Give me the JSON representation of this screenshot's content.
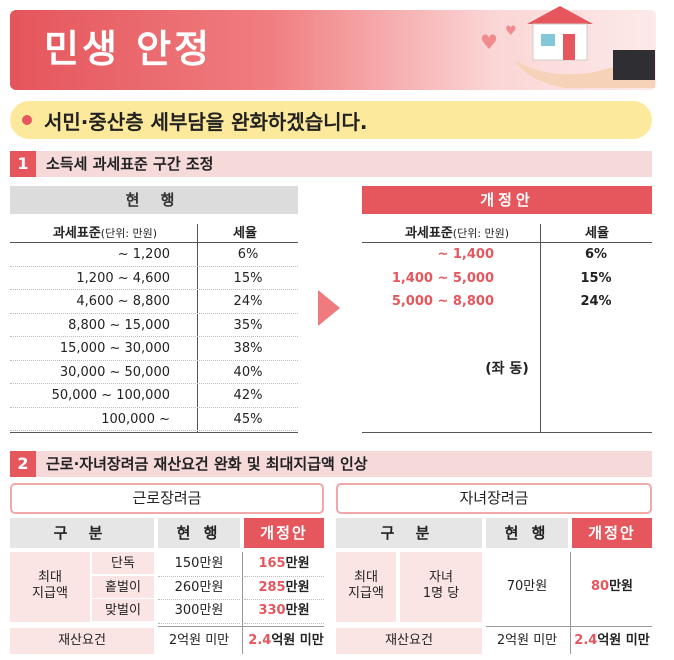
{
  "header": {
    "title": "민생 안정"
  },
  "subtitle": "서민·중산층 세부담을 완화하겠습니다.",
  "section1": {
    "number": "1",
    "title": "소득세 과세표준 구간 조정",
    "current": {
      "label": "현 행",
      "col_base": "과세표준",
      "col_unit": "(단위: 만원)",
      "col_rate": "세율",
      "rows": [
        {
          "base": "~ 1,200",
          "rate": "6%"
        },
        {
          "base": "1,200 ~ 4,600",
          "rate": "15%"
        },
        {
          "base": "4,600 ~ 8,800",
          "rate": "24%"
        },
        {
          "base": "8,800 ~ 15,000",
          "rate": "35%"
        },
        {
          "base": "15,000 ~ 30,000",
          "rate": "38%"
        },
        {
          "base": "30,000 ~ 50,000",
          "rate": "40%"
        },
        {
          "base": "50,000 ~ 100,000",
          "rate": "42%"
        },
        {
          "base": "100,000 ~",
          "rate": "45%"
        }
      ]
    },
    "proposed": {
      "label": "개정안",
      "col_base": "과세표준",
      "col_unit": "(단위: 만원)",
      "col_rate": "세율",
      "rows": [
        {
          "base": "~ 1,400",
          "rate": "6%"
        },
        {
          "base": "1,400 ~ 5,000",
          "rate": "15%"
        },
        {
          "base": "5,000 ~ 8,800",
          "rate": "24%"
        }
      ],
      "note": "(좌 동)"
    }
  },
  "section2": {
    "number": "2",
    "title": "근로·자녀장려금 재산요건 완화 및 최대지급액 인상",
    "work": {
      "title": "근로장려금",
      "col_div": "구 분",
      "col_cur": "현 행",
      "col_new": "개정안",
      "group_label": "최대\n지급액",
      "group_line1": "최대",
      "group_line2": "지급액",
      "rows": [
        {
          "type": "단독",
          "cur": "150만원",
          "new_num": "165",
          "new_unit": "만원"
        },
        {
          "type": "홑벌이",
          "cur": "260만원",
          "new_num": "285",
          "new_unit": "만원"
        },
        {
          "type": "맞벌이",
          "cur": "300만원",
          "new_num": "330",
          "new_unit": "만원"
        }
      ],
      "asset_label": "재산요건",
      "asset_cur": "2억원 미만",
      "asset_new_num": "2.4",
      "asset_new_unit": "억원 미만"
    },
    "child": {
      "title": "자녀장려금",
      "col_div": "구 분",
      "col_cur": "현 행",
      "col_new": "개정안",
      "group_line1": "최대",
      "group_line2": "지급액",
      "sub_line1": "자녀",
      "sub_line2": "1명 당",
      "cur": "70만원",
      "new_num": "80",
      "new_unit": "만원",
      "asset_label": "재산요건",
      "asset_cur": "2억원 미만",
      "asset_new_num": "2.4",
      "asset_new_unit": "억원 미만"
    }
  },
  "colors": {
    "accent": "#e5575d",
    "pink": "#f6dada",
    "yellow": "#fde99b"
  }
}
